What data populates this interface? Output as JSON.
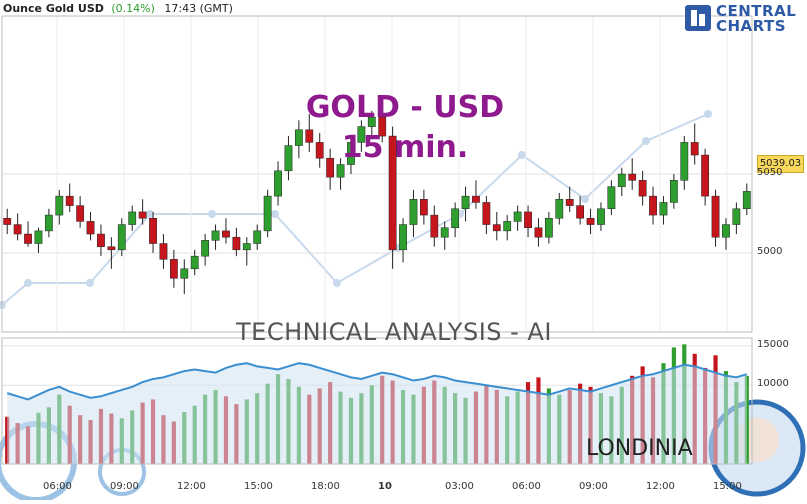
{
  "header": {
    "symbol": "Ounce Gold USD",
    "change": "(0.14%)",
    "time": "17:43 (GMT)"
  },
  "logo": {
    "line1": "CENTRAL",
    "line2": "CHARTS"
  },
  "overlay": {
    "title_line1": "GOLD - USD",
    "title_line2": "15 min.",
    "analysis_label": "TECHNICAL  ANALYSIS - AI",
    "brand": "LONDINIA"
  },
  "colors": {
    "up": "#2e9e2e",
    "down": "#c4161c",
    "wick": "#222222",
    "title": "#8e1a8e",
    "volume_line": "#3b8fd0",
    "price_tag": "#f7d85a"
  },
  "chart_data": [
    {
      "type": "candlestick",
      "title": "",
      "ylim": [
        4950,
        5150
      ],
      "y_ticks": [
        5000,
        5050
      ],
      "x_tick_labels": [
        "06:00",
        "09:00",
        "12:00",
        "15:00",
        "18:00",
        "10",
        "03:00",
        "06:00",
        "09:00",
        "12:00",
        "15:00"
      ],
      "last_price": "5039.03",
      "ohlc": [
        [
          5022,
          5028,
          5012,
          5018
        ],
        [
          5018,
          5025,
          5008,
          5012
        ],
        [
          5012,
          5020,
          5004,
          5006
        ],
        [
          5006,
          5016,
          5000,
          5014
        ],
        [
          5014,
          5028,
          5010,
          5024
        ],
        [
          5024,
          5040,
          5018,
          5036
        ],
        [
          5036,
          5044,
          5026,
          5030
        ],
        [
          5030,
          5036,
          5016,
          5020
        ],
        [
          5020,
          5026,
          5008,
          5012
        ],
        [
          5012,
          5018,
          4998,
          5004
        ],
        [
          5004,
          5010,
          4990,
          5002
        ],
        [
          5002,
          5022,
          4998,
          5018
        ],
        [
          5018,
          5030,
          5014,
          5026
        ],
        [
          5026,
          5034,
          5018,
          5022
        ],
        [
          5022,
          5026,
          5000,
          5006
        ],
        [
          5006,
          5012,
          4990,
          4996
        ],
        [
          4996,
          5002,
          4978,
          4984
        ],
        [
          4984,
          4996,
          4974,
          4990
        ],
        [
          4990,
          5002,
          4986,
          4998
        ],
        [
          4998,
          5012,
          4992,
          5008
        ],
        [
          5008,
          5018,
          5002,
          5014
        ],
        [
          5014,
          5022,
          5006,
          5010
        ],
        [
          5010,
          5016,
          4998,
          5002
        ],
        [
          5002,
          5010,
          4992,
          5006
        ],
        [
          5006,
          5018,
          5002,
          5014
        ],
        [
          5014,
          5040,
          5010,
          5036
        ],
        [
          5036,
          5058,
          5030,
          5052
        ],
        [
          5052,
          5074,
          5046,
          5068
        ],
        [
          5068,
          5084,
          5060,
          5078
        ],
        [
          5078,
          5088,
          5064,
          5070
        ],
        [
          5070,
          5076,
          5054,
          5060
        ],
        [
          5060,
          5066,
          5040,
          5048
        ],
        [
          5048,
          5060,
          5040,
          5056
        ],
        [
          5056,
          5074,
          5050,
          5070
        ],
        [
          5070,
          5084,
          5064,
          5080
        ],
        [
          5080,
          5090,
          5072,
          5086
        ],
        [
          5086,
          5092,
          5070,
          5074
        ],
        [
          5074,
          5080,
          4990,
          5002
        ],
        [
          5002,
          5022,
          4994,
          5018
        ],
        [
          5018,
          5040,
          5010,
          5034
        ],
        [
          5034,
          5040,
          5018,
          5024
        ],
        [
          5024,
          5030,
          5004,
          5010
        ],
        [
          5010,
          5020,
          5002,
          5016
        ],
        [
          5016,
          5032,
          5010,
          5028
        ],
        [
          5028,
          5042,
          5020,
          5036
        ],
        [
          5036,
          5046,
          5028,
          5032
        ],
        [
          5032,
          5036,
          5012,
          5018
        ],
        [
          5018,
          5026,
          5008,
          5014
        ],
        [
          5014,
          5024,
          5008,
          5020
        ],
        [
          5020,
          5030,
          5014,
          5026
        ],
        [
          5026,
          5030,
          5010,
          5016
        ],
        [
          5016,
          5022,
          5004,
          5010
        ],
        [
          5010,
          5026,
          5006,
          5022
        ],
        [
          5022,
          5038,
          5018,
          5034
        ],
        [
          5034,
          5042,
          5026,
          5030
        ],
        [
          5030,
          5036,
          5018,
          5022
        ],
        [
          5022,
          5028,
          5012,
          5018
        ],
        [
          5018,
          5032,
          5014,
          5028
        ],
        [
          5028,
          5046,
          5024,
          5042
        ],
        [
          5042,
          5054,
          5036,
          5050
        ],
        [
          5050,
          5060,
          5040,
          5046
        ],
        [
          5046,
          5052,
          5030,
          5036
        ],
        [
          5036,
          5042,
          5018,
          5024
        ],
        [
          5024,
          5036,
          5018,
          5032
        ],
        [
          5032,
          5050,
          5028,
          5046
        ],
        [
          5046,
          5074,
          5040,
          5070
        ],
        [
          5070,
          5082,
          5056,
          5062
        ],
        [
          5062,
          5066,
          5030,
          5036
        ],
        [
          5036,
          5040,
          5004,
          5010
        ],
        [
          5010,
          5022,
          5002,
          5018
        ],
        [
          5018,
          5032,
          5012,
          5028
        ],
        [
          5028,
          5044,
          5024,
          5039
        ]
      ]
    },
    {
      "type": "bar",
      "title": "",
      "ylim": [
        0,
        16000
      ],
      "y_ticks": [
        10000,
        15000
      ],
      "series": [
        {
          "values": [
            6000,
            5200,
            4800,
            6500,
            7200,
            8800,
            7400,
            6200,
            5600,
            7000,
            6400,
            5800,
            6800,
            7800,
            8200,
            6200,
            5400,
            6600,
            7400,
            8800,
            9400,
            8600,
            7600,
            8200,
            9000,
            10200,
            11400,
            10800,
            9800,
            8800,
            9600,
            10400,
            9200,
            8400,
            9000,
            10000,
            11200,
            10600,
            9400,
            8800,
            9800,
            10600,
            9800,
            9000,
            8400,
            9200,
            10000,
            9400,
            8600,
            9200,
            10400,
            11000,
            9600,
            8800,
            9400,
            10200,
            9800,
            9000,
            8600,
            9800,
            11200,
            12400,
            11000,
            12800,
            14800,
            15200,
            14000,
            12200,
            13800,
            11800,
            10400,
            11200
          ]
        },
        {
          "values": [
            9000,
            8600,
            8200,
            8800,
            9400,
            9800,
            9200,
            8800,
            8400,
            8600,
            9000,
            9400,
            9800,
            10400,
            10800,
            11000,
            11400,
            11800,
            12000,
            11800,
            11600,
            12200,
            12600,
            12800,
            12400,
            12200,
            12000,
            12400,
            12800,
            12600,
            12200,
            11800,
            11400,
            11000,
            10800,
            11200,
            11600,
            11400,
            11000,
            10600,
            10800,
            11200,
            11000,
            10600,
            10400,
            10200,
            10000,
            9800,
            9600,
            9400,
            9200,
            9000,
            8800,
            9200,
            9600,
            9400,
            9200,
            9600,
            10000,
            10400,
            10800,
            11200,
            11400,
            11800,
            12200,
            12600,
            12400,
            12000,
            11600,
            11200,
            11000,
            11400
          ]
        }
      ]
    }
  ]
}
